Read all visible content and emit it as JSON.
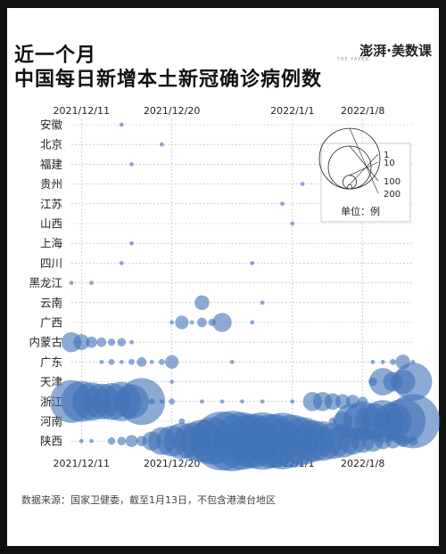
{
  "title_line1": "近一个月",
  "title_line2": "中国每日新增本土新冠确诊病例数",
  "brand": "澎湃·美数课",
  "brand_sub": "THE PAPER",
  "footer": "数据来源：国家卫健委，截至1月13日，不包含港澳台地区",
  "colors": {
    "bubble": "#3f72b8",
    "grid": "#9aa0a8",
    "text": "#222222"
  },
  "chart_data": {
    "type": "scatter",
    "subtype": "bubble",
    "title": "近一个月中国每日新增本土新冠确诊病例数",
    "x_start": "2021-12-10",
    "x_end": "2022-01-13",
    "x_tick_labels": [
      "2021/12/11",
      "2021/12/20",
      "2022/1/1",
      "2022/1/8"
    ],
    "x_tick_dates": [
      "2021-12-11",
      "2021-12-20",
      "2022-01-01",
      "2022-01-08"
    ],
    "categories": [
      "安徽",
      "北京",
      "福建",
      "贵州",
      "江苏",
      "山西",
      "上海",
      "四川",
      "黑龙江",
      "云南",
      "广西",
      "内蒙古",
      "广东",
      "天津",
      "浙江",
      "河南",
      "陕西"
    ],
    "size_legend": {
      "values": [
        1,
        10,
        100,
        200
      ],
      "unit_label": "单位：例"
    },
    "series": [
      {
        "name": "安徽",
        "points": [
          [
            "2021-12-15",
            1
          ]
        ]
      },
      {
        "name": "北京",
        "points": [
          [
            "2021-12-19",
            1
          ]
        ]
      },
      {
        "name": "福建",
        "points": [
          [
            "2021-12-16",
            1
          ]
        ]
      },
      {
        "name": "贵州",
        "points": [
          [
            "2022-01-02",
            1
          ]
        ]
      },
      {
        "name": "江苏",
        "points": [
          [
            "2021-12-31",
            1
          ]
        ]
      },
      {
        "name": "山西",
        "points": [
          [
            "2022-01-01",
            1
          ]
        ]
      },
      {
        "name": "上海",
        "points": [
          [
            "2021-12-16",
            1
          ]
        ]
      },
      {
        "name": "四川",
        "points": [
          [
            "2021-12-15",
            1
          ],
          [
            "2021-12-28",
            1
          ]
        ]
      },
      {
        "name": "黑龙江",
        "points": [
          [
            "2021-12-10",
            1
          ],
          [
            "2021-12-12",
            1
          ]
        ]
      },
      {
        "name": "云南",
        "points": [
          [
            "2021-12-23",
            12
          ],
          [
            "2021-12-29",
            1
          ]
        ]
      },
      {
        "name": "广西",
        "points": [
          [
            "2021-12-20",
            1
          ],
          [
            "2021-12-21",
            10
          ],
          [
            "2021-12-22",
            1
          ],
          [
            "2021-12-23",
            5
          ],
          [
            "2021-12-24",
            3
          ],
          [
            "2021-12-25",
            20
          ],
          [
            "2021-12-28",
            1
          ]
        ]
      },
      {
        "name": "内蒙古",
        "points": [
          [
            "2021-12-10",
            22
          ],
          [
            "2021-12-11",
            14
          ],
          [
            "2021-12-12",
            7
          ],
          [
            "2021-12-13",
            5
          ],
          [
            "2021-12-14",
            3
          ],
          [
            "2021-12-15",
            4
          ],
          [
            "2021-12-16",
            1
          ]
        ]
      },
      {
        "name": "广东",
        "points": [
          [
            "2021-12-13",
            1
          ],
          [
            "2021-12-14",
            2
          ],
          [
            "2021-12-15",
            1
          ],
          [
            "2021-12-16",
            2
          ],
          [
            "2021-12-17",
            5
          ],
          [
            "2021-12-18",
            1
          ],
          [
            "2021-12-19",
            2
          ],
          [
            "2021-12-20",
            10
          ],
          [
            "2021-12-26",
            1
          ],
          [
            "2022-01-09",
            1
          ],
          [
            "2022-01-10",
            1
          ],
          [
            "2022-01-11",
            2
          ],
          [
            "2022-01-12",
            12
          ],
          [
            "2022-01-13",
            1
          ]
        ]
      },
      {
        "name": "天津",
        "points": [
          [
            "2021-12-20",
            1
          ],
          [
            "2022-01-09",
            4
          ],
          [
            "2022-01-10",
            41
          ],
          [
            "2022-01-11",
            21
          ],
          [
            "2022-01-12",
            33
          ],
          [
            "2022-01-13",
            80
          ]
        ]
      },
      {
        "name": "浙江",
        "points": [
          [
            "2021-12-10",
            100
          ],
          [
            "2021-12-11",
            90
          ],
          [
            "2021-12-12",
            80
          ],
          [
            "2021-12-13",
            70
          ],
          [
            "2021-12-14",
            75
          ],
          [
            "2021-12-15",
            85
          ],
          [
            "2021-12-16",
            65
          ],
          [
            "2021-12-17",
            120
          ],
          [
            "2021-12-18",
            2
          ],
          [
            "2021-12-19",
            1
          ],
          [
            "2021-12-20",
            2
          ],
          [
            "2021-12-23",
            1
          ],
          [
            "2021-12-25",
            1
          ],
          [
            "2021-12-27",
            1
          ],
          [
            "2021-12-29",
            1
          ],
          [
            "2022-01-01",
            1
          ],
          [
            "2022-01-03",
            20
          ],
          [
            "2022-01-04",
            20
          ],
          [
            "2022-01-05",
            15
          ],
          [
            "2022-01-06",
            12
          ],
          [
            "2022-01-07",
            10
          ],
          [
            "2022-01-08",
            5
          ]
        ]
      },
      {
        "name": "河南",
        "points": [
          [
            "2021-12-21",
            2
          ],
          [
            "2022-01-05",
            3
          ],
          [
            "2022-01-06",
            21
          ],
          [
            "2022-01-07",
            70
          ],
          [
            "2022-01-08",
            85
          ],
          [
            "2022-01-09",
            72
          ],
          [
            "2022-01-10",
            98
          ],
          [
            "2022-01-11",
            75
          ],
          [
            "2022-01-12",
            112
          ],
          [
            "2022-01-13",
            160
          ]
        ]
      },
      {
        "name": "陕西",
        "points": [
          [
            "2021-12-11",
            1
          ],
          [
            "2021-12-12",
            1
          ],
          [
            "2021-12-14",
            3
          ],
          [
            "2021-12-15",
            4
          ],
          [
            "2021-12-16",
            8
          ],
          [
            "2021-12-17",
            6
          ],
          [
            "2021-12-18",
            20
          ],
          [
            "2021-12-19",
            42
          ],
          [
            "2021-12-20",
            52
          ],
          [
            "2021-12-21",
            72
          ],
          [
            "2021-12-22",
            75
          ],
          [
            "2021-12-23",
            100
          ],
          [
            "2021-12-24",
            120
          ],
          [
            "2021-12-25",
            190
          ],
          [
            "2021-12-26",
            200
          ],
          [
            "2021-12-27",
            180
          ],
          [
            "2021-12-28",
            160
          ],
          [
            "2021-12-29",
            180
          ],
          [
            "2021-12-30",
            160
          ],
          [
            "2021-12-31",
            175
          ],
          [
            "2022-01-01",
            150
          ],
          [
            "2022-01-02",
            125
          ],
          [
            "2022-01-03",
            95
          ],
          [
            "2022-01-04",
            85
          ],
          [
            "2022-01-05",
            70
          ],
          [
            "2022-01-06",
            60
          ],
          [
            "2022-01-07",
            40
          ],
          [
            "2022-01-08",
            30
          ],
          [
            "2022-01-09",
            25
          ],
          [
            "2022-01-10",
            15
          ],
          [
            "2022-01-11",
            12
          ],
          [
            "2022-01-12",
            8
          ],
          [
            "2022-01-13",
            5
          ]
        ]
      }
    ]
  }
}
